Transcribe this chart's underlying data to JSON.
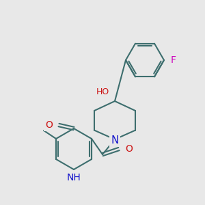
{
  "bg_color": "#e8e8e8",
  "bond_color": "#3d6e6e",
  "bw": 1.5,
  "atom_colors": {
    "N": "#1515cc",
    "O": "#cc1515",
    "F": "#cc00bb"
  },
  "fs": 9,
  "fig_w": 3.0,
  "fig_h": 3.0,
  "dpi": 100
}
